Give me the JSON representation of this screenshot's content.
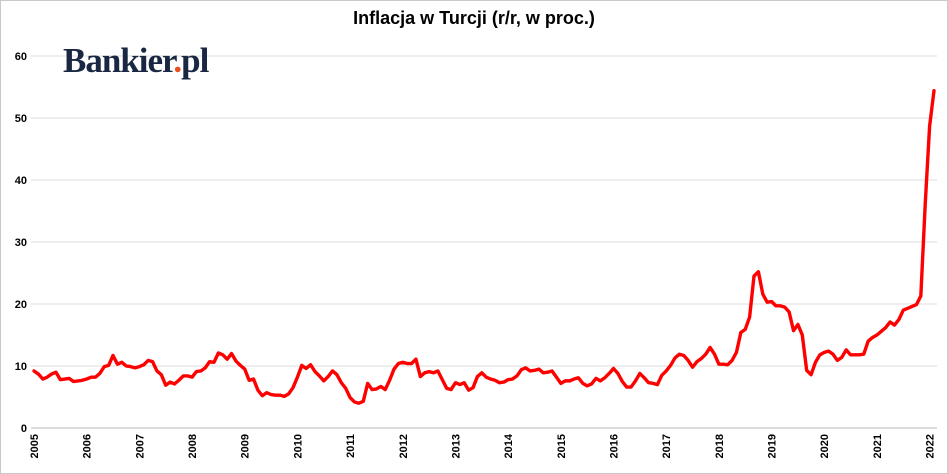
{
  "logo": {
    "main": "Bankier",
    "dot": ".",
    "suffix": "pl",
    "color": "#1a2742",
    "dot_color": "#e8501e"
  },
  "chart_data": {
    "type": "line",
    "title": "Inflacja w Turcji (r/r, w proc.)",
    "xlabel": "",
    "ylabel": "",
    "frequency": "monthly",
    "x_start": "2005-01",
    "x_end": "2022-02",
    "x_tick_labels": [
      "2005",
      "2006",
      "2007",
      "2008",
      "2009",
      "2010",
      "2011",
      "2012",
      "2013",
      "2014",
      "2015",
      "2016",
      "2017",
      "2018",
      "2019",
      "2020",
      "2021",
      "2022"
    ],
    "months_per_tick": 12,
    "y_ticks": [
      0,
      10,
      20,
      30,
      40,
      50,
      60
    ],
    "ylim": [
      0,
      60
    ],
    "grid": "horizontal",
    "legend": "none",
    "line_color": "#ff0000",
    "grid_color": "#dcdcdc",
    "axis_line_color": "#b9b9b9",
    "series": [
      {
        "name": "Inflacja w Turcji (r/r, w proc.)",
        "color": "#ff0000",
        "values": [
          9.2,
          8.7,
          7.9,
          8.2,
          8.7,
          9.0,
          7.8,
          7.9,
          8.0,
          7.5,
          7.6,
          7.7,
          7.9,
          8.2,
          8.2,
          8.8,
          9.9,
          10.1,
          11.7,
          10.3,
          10.6,
          10.0,
          9.9,
          9.7,
          9.9,
          10.2,
          10.9,
          10.7,
          9.2,
          8.6,
          6.9,
          7.4,
          7.1,
          7.7,
          8.4,
          8.4,
          8.2,
          9.1,
          9.2,
          9.7,
          10.7,
          10.6,
          12.1,
          11.8,
          11.1,
          12.0,
          10.8,
          10.1,
          9.5,
          7.7,
          7.9,
          6.1,
          5.2,
          5.7,
          5.4,
          5.3,
          5.3,
          5.1,
          5.5,
          6.5,
          8.2,
          10.1,
          9.6,
          10.2,
          9.1,
          8.4,
          7.6,
          8.3,
          9.2,
          8.6,
          7.3,
          6.4,
          4.9,
          4.2,
          4.0,
          4.3,
          7.2,
          6.2,
          6.3,
          6.7,
          6.2,
          7.7,
          9.5,
          10.4,
          10.6,
          10.4,
          10.4,
          11.1,
          8.3,
          8.9,
          9.1,
          8.9,
          9.2,
          7.8,
          6.4,
          6.2,
          7.3,
          7.0,
          7.3,
          6.1,
          6.5,
          8.3,
          8.9,
          8.2,
          7.9,
          7.7,
          7.3,
          7.4,
          7.8,
          7.9,
          8.4,
          9.4,
          9.7,
          9.2,
          9.3,
          9.5,
          8.9,
          9.0,
          9.2,
          8.2,
          7.2,
          7.6,
          7.6,
          7.9,
          8.1,
          7.2,
          6.8,
          7.1,
          8.0,
          7.6,
          8.1,
          8.8,
          9.6,
          8.8,
          7.5,
          6.6,
          6.6,
          7.6,
          8.8,
          8.1,
          7.3,
          7.2,
          7.0,
          8.5,
          9.2,
          10.1,
          11.3,
          11.9,
          11.7,
          10.9,
          9.8,
          10.7,
          11.2,
          11.9,
          13.0,
          11.9,
          10.3,
          10.3,
          10.2,
          10.9,
          12.2,
          15.4,
          15.9,
          17.9,
          24.5,
          25.2,
          21.6,
          20.3,
          20.4,
          19.7,
          19.7,
          19.5,
          18.7,
          15.7,
          16.7,
          15.0,
          9.3,
          8.6,
          10.6,
          11.8,
          12.2,
          12.4,
          11.9,
          10.9,
          11.4,
          12.6,
          11.8,
          11.8,
          11.8,
          11.9,
          14.0,
          14.6,
          15.0,
          15.6,
          16.2,
          17.1,
          16.6,
          17.5,
          19.0,
          19.3,
          19.6,
          19.9,
          21.3,
          36.1,
          48.7,
          54.4
        ]
      }
    ]
  }
}
